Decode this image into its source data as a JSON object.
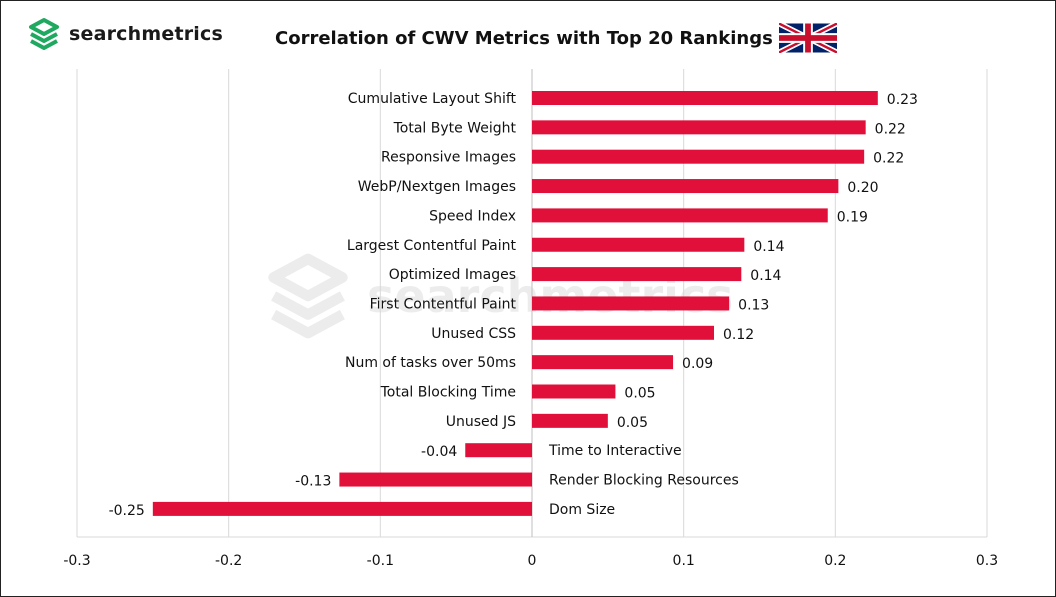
{
  "brand": {
    "name": "searchmetrics",
    "logo_icon": "searchmetrics-logo-icon",
    "accent": "#1fa85f"
  },
  "watermark": {
    "text": "searchmetrics"
  },
  "flag_icon": "uk-flag-icon",
  "chart_data": {
    "type": "bar",
    "orientation": "horizontal",
    "title": "Correlation of CWV Metrics with Top 20 Rankings",
    "categories": [
      "Cumulative Layout Shift",
      "Total Byte Weight",
      "Responsive Images",
      "WebP/Nextgen Images",
      "Speed Index",
      "Largest Contentful Paint",
      "Optimized Images",
      "First Contentful Paint",
      "Unused CSS",
      "Num of tasks over 50ms",
      "Total Blocking Time",
      "Unused JS",
      "Time to Interactive",
      "Render Blocking Resources",
      "Dom Size"
    ],
    "values": [
      0.228,
      0.22,
      0.219,
      0.202,
      0.195,
      0.14,
      0.138,
      0.13,
      0.12,
      0.093,
      0.055,
      0.05,
      -0.044,
      -0.127,
      -0.25
    ],
    "value_labels": [
      "0.23",
      "0.22",
      "0.22",
      "0.20",
      "0.19",
      "0.14",
      "0.14",
      "0.13",
      "0.12",
      "0.09",
      "0.05",
      "0.05",
      "-0.04",
      "-0.13",
      "-0.25"
    ],
    "xlim": [
      -0.3,
      0.3
    ],
    "x_ticks": [
      "-0.3",
      "-0.2",
      "-0.1",
      "0",
      "0.1",
      "0.2",
      "0.3"
    ],
    "x_tick_values": [
      -0.3,
      -0.2,
      -0.1,
      0,
      0.1,
      0.2,
      0.3
    ],
    "grid": true,
    "legend": "none",
    "bar_color": "#e0103a",
    "xlabel": "",
    "ylabel": ""
  }
}
